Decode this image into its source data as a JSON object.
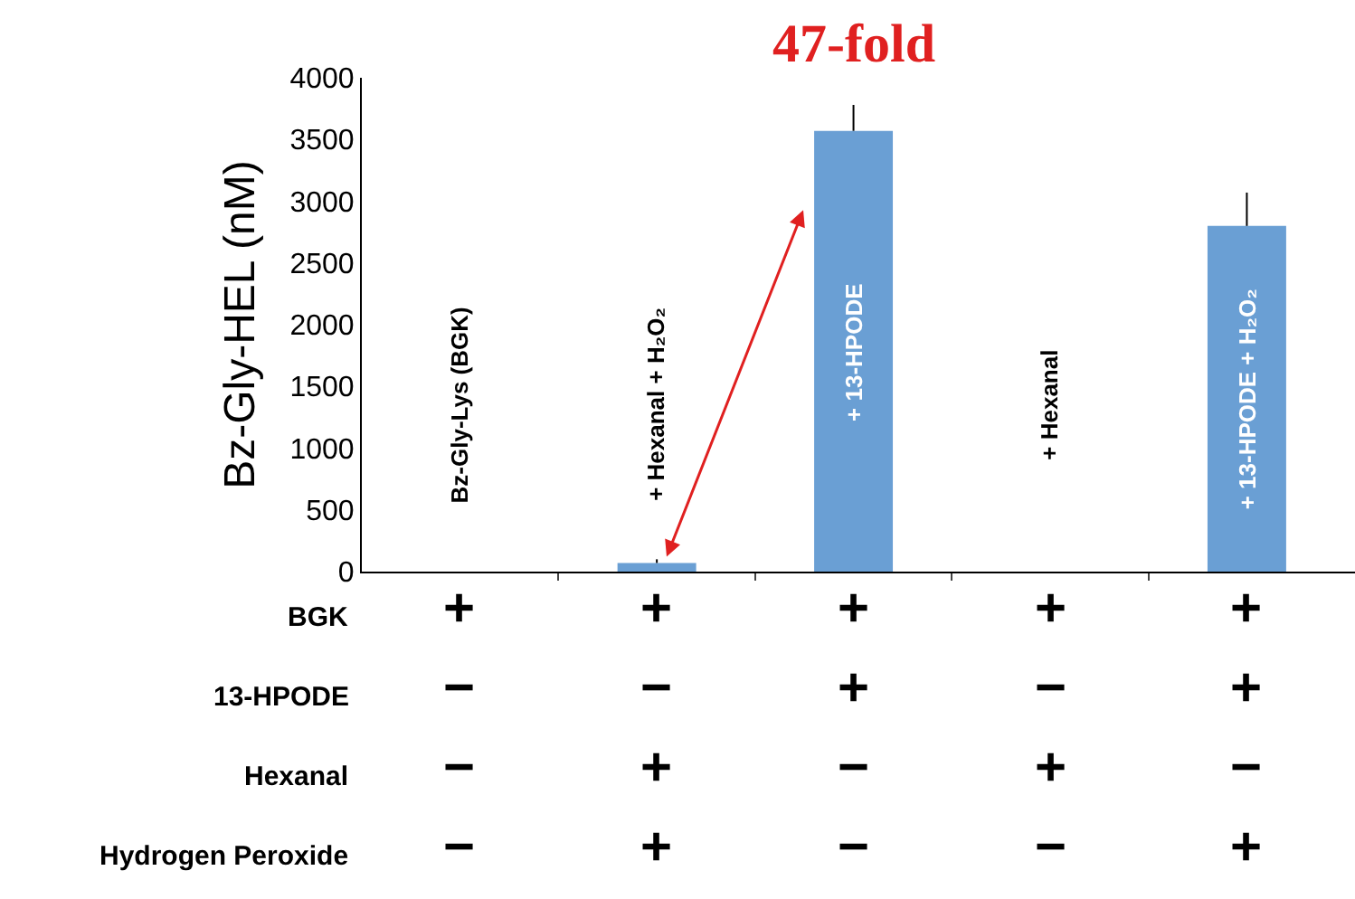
{
  "chart_data": {
    "type": "bar",
    "ylabel": "Bz-Gly-HEL (nM)",
    "categories": [
      "Bz-Gly-Lys (BGK)",
      "+ Hexanal + H₂O₂",
      "+ 13-HPODE",
      "+ Hexanal",
      "+ 13-HPODE + H₂O₂"
    ],
    "values": [
      0,
      70,
      3570,
      0,
      2800
    ],
    "errors": [
      null,
      [
        70,
        100
      ],
      [
        3570,
        3780
      ],
      null,
      [
        2800,
        3070
      ]
    ],
    "color": "#6a9fd4",
    "ylim": [
      0,
      4000
    ],
    "yticks": [
      0,
      500,
      1000,
      1500,
      2000,
      2500,
      3000,
      3500,
      4000
    ],
    "grid": false,
    "annotations": [
      "47-fold",
      "BGK",
      "+",
      "+",
      "+",
      "+",
      "+",
      "13-HPODE",
      "−",
      "−",
      "+",
      "−",
      "+",
      "Hexanal",
      "−",
      "+",
      "−",
      "+",
      "−",
      "Hydrogen Peroxide",
      "−",
      "+",
      "−",
      "−",
      "+"
    ]
  }
}
